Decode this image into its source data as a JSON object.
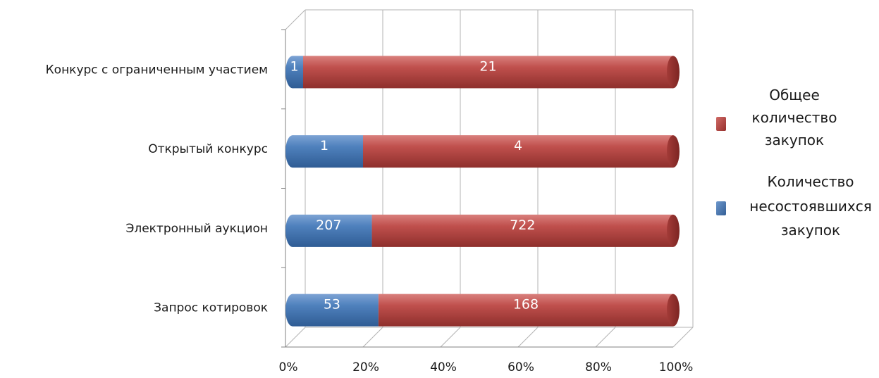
{
  "chart_data": {
    "type": "bar",
    "orientation": "horizontal",
    "stacking": "percent",
    "style": "3d-cylinder",
    "categories": [
      "Конкурс с ограниченным участием",
      "Открытый конкурс",
      "Электронный аукцион",
      "Запрос котировок"
    ],
    "series": [
      {
        "name": "Количество несостоявшихся закупок",
        "legend_lines": [
          "Количество",
          "несостоявшихся",
          "закупок"
        ],
        "color": "#4f81bd",
        "values": [
          1,
          1,
          207,
          53
        ],
        "labels": [
          "1",
          "1",
          "207",
          "53"
        ]
      },
      {
        "name": "Общее количество закупок",
        "legend_lines": [
          "Общее",
          "количество",
          "закупок"
        ],
        "color": "#c0504d",
        "values": [
          21,
          4,
          722,
          168
        ],
        "labels": [
          "21",
          "4",
          "722",
          "168"
        ]
      }
    ],
    "x_ticks": [
      "0%",
      "20%",
      "40%",
      "60%",
      "80%",
      "100%"
    ],
    "xlim": [
      0,
      100
    ],
    "grid": true,
    "legend_position": "right"
  }
}
